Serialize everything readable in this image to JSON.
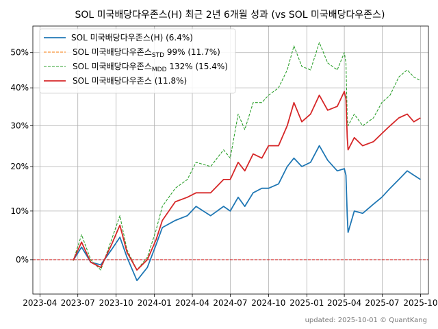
{
  "chart_data": {
    "type": "line",
    "title": "SOL 미국배당다우존스(H) 최근 2년 6개월 성과 (vs SOL 미국배당다우존스)",
    "footer": "updated: 2025-10-01 © QuantKang",
    "x_ticks": [
      "2023-04",
      "2023-07",
      "2023-10",
      "2024-01",
      "2024-04",
      "2024-07",
      "2024-10",
      "2025-01",
      "2025-04",
      "2025-07",
      "2025-10"
    ],
    "y_ticks": [
      "0%",
      "10%",
      "20%",
      "30%",
      "40%",
      "50%"
    ],
    "y_scale": "log1p-like (percent return)",
    "grid": true,
    "legend_position": "top-left",
    "reference_line": {
      "y": 0,
      "color": "#d62728",
      "style": "dashed"
    },
    "legend": [
      {
        "main": "SOL 미국배당다우존스(H)",
        "sub": "",
        "tail": " (6.4%)",
        "color": "#1f77b4",
        "style": "solid"
      },
      {
        "main": "SOL 미국배당다우존스",
        "sub": "STD",
        "tail": " 99% (11.7%)",
        "color": "#ff7f0e",
        "style": "dashed"
      },
      {
        "main": "SOL 미국배당다우존스",
        "sub": "MDD",
        "tail": " 132% (15.4%)",
        "color": "#2ca02c",
        "style": "dashed"
      },
      {
        "main": "SOL 미국배당다우존스",
        "sub": "",
        "tail": " (11.8%)",
        "color": "#d62728",
        "style": "solid"
      }
    ],
    "series": [
      {
        "name": "SOL 미국배당다우존스(H)",
        "color": "#1f77b4",
        "style": "solid",
        "x": [
          "2023-06-20",
          "2023-07-10",
          "2023-08-01",
          "2023-08-25",
          "2023-09-20",
          "2023-10-10",
          "2023-10-27",
          "2023-11-20",
          "2023-12-15",
          "2024-01-05",
          "2024-01-20",
          "2024-02-20",
          "2024-03-20",
          "2024-04-10",
          "2024-05-15",
          "2024-06-15",
          "2024-07-01",
          "2024-07-20",
          "2024-08-05",
          "2024-08-25",
          "2024-09-15",
          "2024-10-01",
          "2024-10-25",
          "2024-11-15",
          "2024-12-01",
          "2024-12-20",
          "2025-01-10",
          "2025-01-31",
          "2025-02-20",
          "2025-03-15",
          "2025-04-01",
          "2025-04-05",
          "2025-04-08",
          "2025-04-10",
          "2025-04-25",
          "2025-05-15",
          "2025-06-10",
          "2025-06-30",
          "2025-07-20",
          "2025-08-10",
          "2025-08-30",
          "2025-09-15",
          "2025-10-01"
        ],
        "y": [
          -0.1,
          2.5,
          -0.5,
          -1.0,
          2.0,
          4.5,
          0.5,
          -4.0,
          -1.5,
          3.0,
          6.5,
          8.0,
          9.0,
          11.0,
          9.0,
          11.0,
          10.0,
          13.0,
          11.0,
          14.0,
          15.0,
          15.0,
          16.0,
          20.0,
          22.0,
          20.0,
          21.0,
          25.0,
          21.5,
          19.0,
          19.5,
          18.0,
          9.0,
          5.5,
          10.0,
          9.5,
          11.5,
          13.0,
          15.0,
          17.0,
          19.0,
          18.0,
          17.0
        ]
      },
      {
        "name": "SOL 미국배당다우존스_MDD",
        "color": "#2ca02c",
        "style": "dashed",
        "x": [
          "2023-06-20",
          "2023-07-10",
          "2023-08-01",
          "2023-08-25",
          "2023-09-20",
          "2023-10-10",
          "2023-10-27",
          "2023-11-20",
          "2023-12-15",
          "2024-01-05",
          "2024-01-20",
          "2024-02-20",
          "2024-03-20",
          "2024-04-10",
          "2024-05-15",
          "2024-06-15",
          "2024-07-01",
          "2024-07-20",
          "2024-08-05",
          "2024-08-25",
          "2024-09-15",
          "2024-10-01",
          "2024-10-25",
          "2024-11-15",
          "2024-12-01",
          "2024-12-20",
          "2025-01-10",
          "2025-01-31",
          "2025-02-20",
          "2025-03-15",
          "2025-04-01",
          "2025-04-05",
          "2025-04-08",
          "2025-04-10",
          "2025-04-25",
          "2025-05-15",
          "2025-06-10",
          "2025-06-30",
          "2025-07-20",
          "2025-08-10",
          "2025-08-30",
          "2025-09-15",
          "2025-10-01"
        ],
        "y": [
          -0.2,
          5.0,
          0.0,
          -2.0,
          4.0,
          9.0,
          2.0,
          -2.0,
          0.5,
          6.0,
          11.0,
          15.0,
          17.0,
          21.0,
          20.0,
          24.0,
          22.0,
          33.0,
          29.0,
          36.0,
          36.0,
          38.0,
          40.0,
          45.0,
          52.0,
          46.0,
          45.0,
          53.0,
          47.0,
          45.0,
          50.0,
          47.0,
          32.0,
          30.0,
          33.0,
          30.0,
          32.0,
          36.0,
          38.0,
          43.0,
          45.0,
          43.0,
          42.0
        ]
      },
      {
        "name": "SOL 미국배당다우존스",
        "color": "#d62728",
        "style": "solid",
        "x": [
          "2023-06-20",
          "2023-07-10",
          "2023-08-01",
          "2023-08-25",
          "2023-09-20",
          "2023-10-10",
          "2023-10-27",
          "2023-11-20",
          "2023-12-15",
          "2024-01-05",
          "2024-01-20",
          "2024-02-20",
          "2024-03-20",
          "2024-04-10",
          "2024-05-15",
          "2024-06-15",
          "2024-07-01",
          "2024-07-20",
          "2024-08-05",
          "2024-08-25",
          "2024-09-15",
          "2024-10-01",
          "2024-10-25",
          "2024-11-15",
          "2024-12-01",
          "2024-12-20",
          "2025-01-10",
          "2025-01-31",
          "2025-02-20",
          "2025-03-15",
          "2025-04-01",
          "2025-04-05",
          "2025-04-08",
          "2025-04-10",
          "2025-04-25",
          "2025-05-15",
          "2025-06-10",
          "2025-06-30",
          "2025-07-20",
          "2025-08-10",
          "2025-08-30",
          "2025-09-15",
          "2025-10-01"
        ],
        "y": [
          -0.1,
          3.5,
          -0.5,
          -1.5,
          3.0,
          7.0,
          1.5,
          -2.0,
          0.0,
          4.0,
          8.0,
          12.0,
          13.0,
          14.0,
          14.0,
          17.0,
          17.0,
          21.0,
          19.0,
          23.0,
          22.0,
          25.0,
          25.0,
          30.0,
          36.0,
          31.0,
          33.0,
          38.0,
          34.0,
          35.0,
          39.0,
          37.0,
          27.0,
          24.0,
          27.0,
          25.0,
          26.0,
          28.0,
          30.0,
          32.0,
          33.0,
          31.0,
          32.0
        ]
      }
    ]
  }
}
